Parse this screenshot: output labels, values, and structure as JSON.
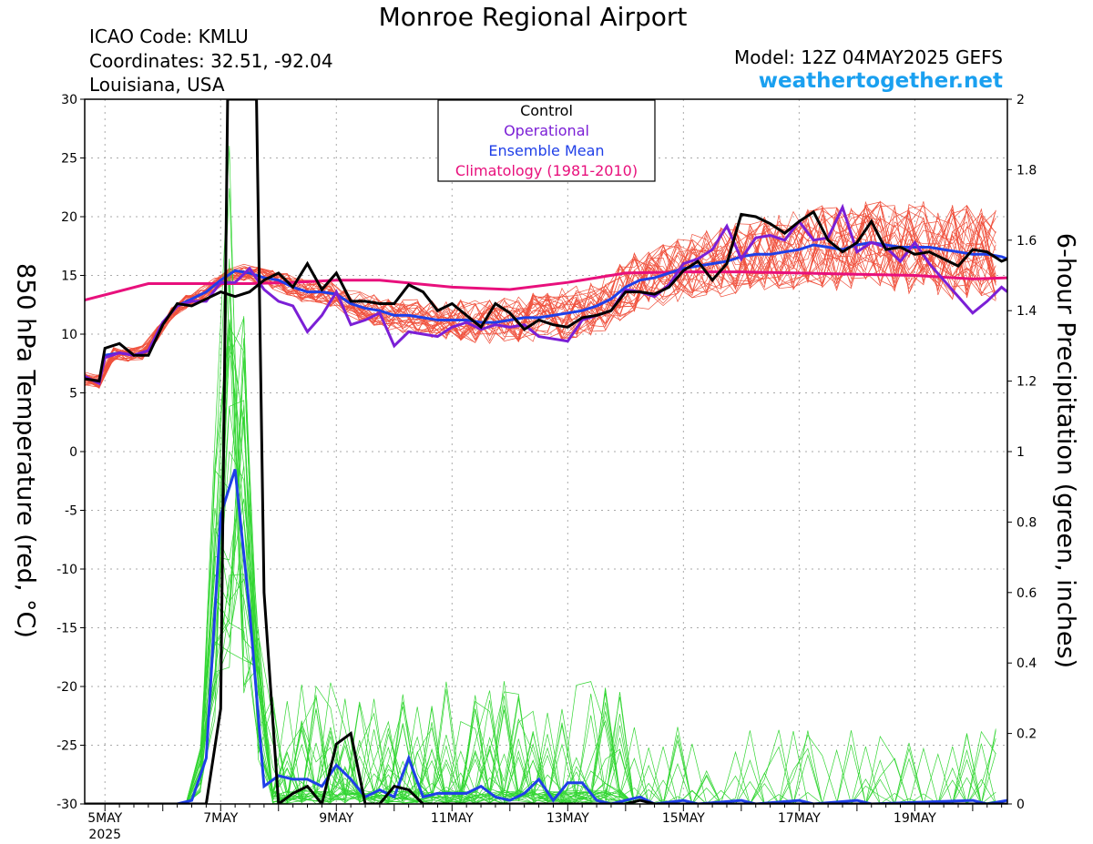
{
  "header": {
    "title": "Monroe Regional Airport",
    "icao": "ICAO Code: KMLU",
    "coordinates": "Coordinates: 32.51, -92.04",
    "region": "Louisiana, USA",
    "model": "Model: 12Z 04MAY2025 GEFS",
    "site": "weathertogether.net"
  },
  "legend": [
    {
      "label": "Control",
      "color": "#000000"
    },
    {
      "label": "Operational",
      "color": "#7b1fd6"
    },
    {
      "label": "Ensemble Mean",
      "color": "#1f3fe8"
    },
    {
      "label": "Climatology (1981-2010)",
      "color": "#e8107c"
    }
  ],
  "colors": {
    "members_temp": "#f0503c",
    "members_precip": "#33d633",
    "control": "#000000",
    "operational": "#7b1fd6",
    "mean": "#1f3fe8",
    "climatology": "#e8107c"
  },
  "chart_data": {
    "type": "line",
    "ylabel": "850 hPa Temperature (red, °C)",
    "y2label": "6-hour Precipitation (green, inches)",
    "ylim": [
      -30,
      30
    ],
    "y2lim": [
      0,
      2
    ],
    "xlim": [
      4.65,
      20.6
    ],
    "grid": true,
    "yticks": [
      "30",
      "25",
      "20",
      "15",
      "10",
      "5",
      "0",
      "-5",
      "-10",
      "-15",
      "-20",
      "-25",
      "-30"
    ],
    "y2ticks": [
      "2",
      "1.8",
      "1.6",
      "1.4",
      "1.2",
      "1",
      "0.8",
      "0.6",
      "0.4",
      "0.2",
      "0"
    ],
    "xticks": [
      {
        "day": 5,
        "label": "5MAY",
        "sub": "2025"
      },
      {
        "day": 7,
        "label": "7MAY"
      },
      {
        "day": 9,
        "label": "9MAY"
      },
      {
        "day": 11,
        "label": "11MAY"
      },
      {
        "day": 13,
        "label": "13MAY"
      },
      {
        "day": 15,
        "label": "15MAY"
      },
      {
        "day": 17,
        "label": "17MAY"
      },
      {
        "day": 19,
        "label": "19MAY"
      }
    ],
    "temperature": {
      "control": [
        [
          4.65,
          6.2
        ],
        [
          4.9,
          6.0
        ],
        [
          5.0,
          8.8
        ],
        [
          5.25,
          9.2
        ],
        [
          5.5,
          8.2
        ],
        [
          5.75,
          8.2
        ],
        [
          6.0,
          10.8
        ],
        [
          6.25,
          12.6
        ],
        [
          6.5,
          12.4
        ],
        [
          6.75,
          13.0
        ],
        [
          7.0,
          13.6
        ],
        [
          7.25,
          13.2
        ],
        [
          7.5,
          13.6
        ],
        [
          7.75,
          14.6
        ],
        [
          8.0,
          15.2
        ],
        [
          8.25,
          14.0
        ],
        [
          8.5,
          16.0
        ],
        [
          8.75,
          13.8
        ],
        [
          9.0,
          15.2
        ],
        [
          9.25,
          12.8
        ],
        [
          9.5,
          12.8
        ],
        [
          9.75,
          12.6
        ],
        [
          10.0,
          12.6
        ],
        [
          10.25,
          14.2
        ],
        [
          10.5,
          13.6
        ],
        [
          10.75,
          12.0
        ],
        [
          11.0,
          12.6
        ],
        [
          11.25,
          11.6
        ],
        [
          11.5,
          10.6
        ],
        [
          11.75,
          12.6
        ],
        [
          12.0,
          11.8
        ],
        [
          12.25,
          10.4
        ],
        [
          12.5,
          11.2
        ],
        [
          12.75,
          10.8
        ],
        [
          13.0,
          10.6
        ],
        [
          13.25,
          11.4
        ],
        [
          13.5,
          11.6
        ],
        [
          13.75,
          12.0
        ],
        [
          14.0,
          13.6
        ],
        [
          14.25,
          13.6
        ],
        [
          14.5,
          13.4
        ],
        [
          14.75,
          14.0
        ],
        [
          15.0,
          15.4
        ],
        [
          15.25,
          16.2
        ],
        [
          15.5,
          14.6
        ],
        [
          15.75,
          16.0
        ],
        [
          16.0,
          20.2
        ],
        [
          16.25,
          20.0
        ],
        [
          16.5,
          19.4
        ],
        [
          16.75,
          18.6
        ],
        [
          17.0,
          19.6
        ],
        [
          17.25,
          20.4
        ],
        [
          17.5,
          18.0
        ],
        [
          17.75,
          17.0
        ],
        [
          18.0,
          17.8
        ],
        [
          18.25,
          19.6
        ],
        [
          18.5,
          17.2
        ],
        [
          18.75,
          17.4
        ],
        [
          19.0,
          16.8
        ],
        [
          19.25,
          17.0
        ],
        [
          19.5,
          16.4
        ],
        [
          19.75,
          15.8
        ],
        [
          20.0,
          17.2
        ],
        [
          20.25,
          17.0
        ],
        [
          20.5,
          16.2
        ],
        [
          20.6,
          16.4
        ]
      ],
      "operational": [
        [
          4.65,
          6.4
        ],
        [
          4.9,
          5.8
        ],
        [
          5.0,
          8.0
        ],
        [
          5.25,
          8.4
        ],
        [
          5.5,
          8.2
        ],
        [
          5.75,
          8.6
        ],
        [
          6.0,
          11.0
        ],
        [
          6.25,
          12.4
        ],
        [
          6.5,
          12.8
        ],
        [
          6.75,
          12.8
        ],
        [
          7.0,
          14.4
        ],
        [
          7.25,
          14.4
        ],
        [
          7.5,
          15.6
        ],
        [
          7.75,
          13.8
        ],
        [
          8.0,
          12.8
        ],
        [
          8.25,
          12.4
        ],
        [
          8.5,
          10.2
        ],
        [
          8.75,
          11.6
        ],
        [
          9.0,
          13.6
        ],
        [
          9.25,
          10.8
        ],
        [
          9.5,
          11.2
        ],
        [
          9.75,
          11.8
        ],
        [
          10.0,
          9.0
        ],
        [
          10.25,
          10.2
        ],
        [
          10.5,
          10.0
        ],
        [
          10.75,
          9.8
        ],
        [
          11.0,
          10.6
        ],
        [
          11.25,
          11.0
        ],
        [
          11.5,
          10.4
        ],
        [
          11.75,
          10.8
        ],
        [
          12.0,
          10.6
        ],
        [
          12.25,
          10.8
        ],
        [
          12.5,
          9.8
        ],
        [
          12.75,
          9.6
        ],
        [
          13.0,
          9.4
        ],
        [
          13.25,
          11.2
        ],
        [
          13.5,
          11.6
        ],
        [
          13.75,
          12.0
        ],
        [
          14.0,
          13.8
        ],
        [
          14.25,
          13.6
        ],
        [
          14.5,
          13.2
        ],
        [
          14.75,
          14.2
        ],
        [
          15.0,
          16.0
        ],
        [
          15.25,
          16.4
        ],
        [
          15.5,
          17.2
        ],
        [
          15.75,
          19.2
        ],
        [
          16.0,
          16.4
        ],
        [
          16.25,
          18.2
        ],
        [
          16.5,
          18.4
        ],
        [
          16.75,
          18.0
        ],
        [
          17.0,
          19.6
        ],
        [
          17.25,
          18.0
        ],
        [
          17.5,
          18.2
        ],
        [
          17.75,
          20.8
        ],
        [
          18.0,
          17.0
        ],
        [
          18.25,
          17.8
        ],
        [
          18.5,
          17.4
        ],
        [
          18.75,
          16.2
        ],
        [
          19.0,
          17.8
        ],
        [
          19.25,
          16.0
        ],
        [
          19.5,
          14.6
        ],
        [
          19.75,
          13.2
        ],
        [
          20.0,
          11.8
        ],
        [
          20.25,
          12.8
        ],
        [
          20.5,
          14.0
        ],
        [
          20.6,
          13.6
        ]
      ],
      "mean": [
        [
          4.65,
          6.2
        ],
        [
          4.9,
          6.0
        ],
        [
          5.0,
          8.2
        ],
        [
          5.25,
          8.4
        ],
        [
          5.5,
          8.2
        ],
        [
          5.75,
          8.6
        ],
        [
          6.0,
          11.0
        ],
        [
          6.25,
          12.4
        ],
        [
          6.5,
          13.0
        ],
        [
          6.75,
          13.6
        ],
        [
          7.0,
          14.6
        ],
        [
          7.25,
          15.4
        ],
        [
          7.5,
          15.2
        ],
        [
          7.75,
          14.8
        ],
        [
          8.0,
          14.6
        ],
        [
          8.25,
          14.0
        ],
        [
          8.5,
          13.6
        ],
        [
          8.75,
          13.6
        ],
        [
          9.0,
          13.4
        ],
        [
          9.25,
          12.6
        ],
        [
          9.5,
          12.2
        ],
        [
          9.75,
          12.0
        ],
        [
          10.0,
          11.6
        ],
        [
          10.25,
          11.6
        ],
        [
          10.5,
          11.4
        ],
        [
          10.75,
          11.2
        ],
        [
          11.0,
          11.2
        ],
        [
          11.25,
          11.2
        ],
        [
          11.5,
          11.0
        ],
        [
          11.75,
          11.0
        ],
        [
          12.0,
          11.2
        ],
        [
          12.25,
          11.4
        ],
        [
          12.5,
          11.4
        ],
        [
          12.75,
          11.6
        ],
        [
          13.0,
          11.8
        ],
        [
          13.25,
          12.0
        ],
        [
          13.5,
          12.4
        ],
        [
          13.75,
          13.0
        ],
        [
          14.0,
          14.0
        ],
        [
          14.25,
          14.6
        ],
        [
          14.5,
          14.8
        ],
        [
          14.75,
          15.2
        ],
        [
          15.0,
          15.6
        ],
        [
          15.25,
          15.8
        ],
        [
          15.5,
          16.0
        ],
        [
          15.75,
          16.2
        ],
        [
          16.0,
          16.6
        ],
        [
          16.25,
          16.8
        ],
        [
          16.5,
          16.8
        ],
        [
          16.75,
          17.0
        ],
        [
          17.0,
          17.2
        ],
        [
          17.25,
          17.6
        ],
        [
          17.5,
          17.4
        ],
        [
          17.75,
          17.2
        ],
        [
          18.0,
          17.6
        ],
        [
          18.25,
          17.8
        ],
        [
          18.5,
          17.6
        ],
        [
          18.75,
          17.4
        ],
        [
          19.0,
          17.4
        ],
        [
          19.25,
          17.4
        ],
        [
          19.5,
          17.2
        ],
        [
          19.75,
          17.0
        ],
        [
          20.0,
          16.8
        ],
        [
          20.25,
          16.8
        ],
        [
          20.5,
          16.6
        ],
        [
          20.6,
          16.4
        ]
      ],
      "climatology": [
        [
          4.65,
          12.9
        ],
        [
          5.75,
          14.3
        ],
        [
          7.5,
          14.3
        ],
        [
          8.25,
          14.4
        ],
        [
          9.0,
          14.6
        ],
        [
          9.75,
          14.6
        ],
        [
          11.0,
          14.0
        ],
        [
          12.0,
          13.8
        ],
        [
          13.0,
          14.4
        ],
        [
          14.0,
          15.2
        ],
        [
          15.0,
          15.3
        ],
        [
          16.0,
          15.3
        ],
        [
          17.0,
          15.2
        ],
        [
          18.0,
          15.1
        ],
        [
          19.0,
          15.0
        ],
        [
          20.0,
          14.7
        ],
        [
          20.6,
          14.8
        ]
      ]
    },
    "precipitation": {
      "control": [
        [
          4.65,
          0
        ],
        [
          6.5,
          0
        ],
        [
          6.75,
          0
        ],
        [
          7.0,
          0.27
        ],
        [
          7.12,
          2.0
        ],
        [
          7.62,
          2.0
        ],
        [
          7.75,
          0.6
        ],
        [
          8.0,
          0
        ],
        [
          8.25,
          0.03
        ],
        [
          8.5,
          0.05
        ],
        [
          8.75,
          0
        ],
        [
          9.0,
          0.17
        ],
        [
          9.25,
          0.2
        ],
        [
          9.5,
          0
        ],
        [
          9.75,
          0
        ],
        [
          10.0,
          0.05
        ],
        [
          10.25,
          0.04
        ],
        [
          10.5,
          0
        ],
        [
          14.0,
          0
        ],
        [
          14.25,
          0.01
        ],
        [
          14.5,
          0
        ],
        [
          20.6,
          0
        ]
      ],
      "mean": [
        [
          4.65,
          0
        ],
        [
          6.25,
          0
        ],
        [
          6.5,
          0.01
        ],
        [
          6.75,
          0.13
        ],
        [
          7.0,
          0.82
        ],
        [
          7.25,
          0.95
        ],
        [
          7.5,
          0.55
        ],
        [
          7.75,
          0.05
        ],
        [
          8.0,
          0.08
        ],
        [
          8.25,
          0.07
        ],
        [
          8.5,
          0.07
        ],
        [
          8.75,
          0.05
        ],
        [
          9.0,
          0.11
        ],
        [
          9.25,
          0.07
        ],
        [
          9.5,
          0.02
        ],
        [
          9.75,
          0.04
        ],
        [
          10.0,
          0.02
        ],
        [
          10.25,
          0.13
        ],
        [
          10.5,
          0.02
        ],
        [
          10.75,
          0.03
        ],
        [
          11.0,
          0.03
        ],
        [
          11.25,
          0.03
        ],
        [
          11.5,
          0.05
        ],
        [
          11.75,
          0.02
        ],
        [
          12.0,
          0.01
        ],
        [
          12.25,
          0.03
        ],
        [
          12.5,
          0.07
        ],
        [
          12.75,
          0.01
        ],
        [
          13.0,
          0.06
        ],
        [
          13.25,
          0.06
        ],
        [
          13.5,
          0.01
        ],
        [
          13.75,
          0
        ],
        [
          14.0,
          0.01
        ],
        [
          14.25,
          0.02
        ],
        [
          14.5,
          0
        ],
        [
          15.0,
          0.01
        ],
        [
          15.25,
          0
        ],
        [
          16.0,
          0.01
        ],
        [
          16.25,
          0
        ],
        [
          17.0,
          0.01
        ],
        [
          17.25,
          0
        ],
        [
          18.0,
          0.01
        ],
        [
          18.25,
          0
        ],
        [
          20.0,
          0.01
        ],
        [
          20.25,
          0
        ],
        [
          20.6,
          0.01
        ]
      ]
    }
  }
}
